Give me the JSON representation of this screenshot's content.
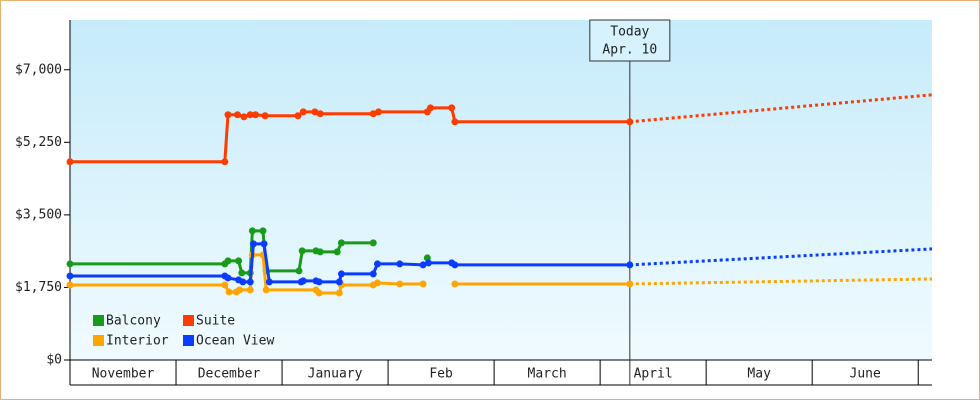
{
  "chart_data": {
    "type": "line",
    "categories": [
      "November",
      "December",
      "January",
      "Feb",
      "March",
      "April",
      "May",
      "June"
    ],
    "xlim": [
      0,
      8.13
    ],
    "xticks": [
      0,
      1,
      2,
      3,
      4,
      5,
      6,
      7,
      8
    ],
    "ylim": [
      0,
      8200
    ],
    "yticks": [
      {
        "value": 0,
        "label": "$0"
      },
      {
        "value": 1750,
        "label": "$1,750"
      },
      {
        "value": 3500,
        "label": "$3,500"
      },
      {
        "value": 5250,
        "label": "$5,250"
      },
      {
        "value": 7000,
        "label": "$7,000"
      }
    ],
    "annotation": {
      "x": 5.28,
      "lines": [
        "Today",
        "Apr. 10"
      ]
    },
    "legend": "lower left",
    "series": [
      {
        "name": "Balcony",
        "color": "#1a9a1a",
        "x": [
          0,
          1.46,
          1.49,
          1.59,
          1.62,
          1.7,
          1.72,
          1.82,
          1.85,
          2.16,
          2.19,
          2.32,
          2.36,
          2.52,
          2.56,
          2.86,
          null,
          3.37
        ],
        "values": [
          2317,
          2317,
          2390,
          2390,
          2100,
          2100,
          3114,
          3114,
          2148,
          2148,
          2631,
          2631,
          2607,
          2607,
          2824,
          2824,
          null,
          2462
        ]
      },
      {
        "name": "Suite",
        "color": "#ff3c00",
        "x": [
          0,
          1.46,
          1.49,
          1.58,
          1.64,
          1.7,
          1.75,
          1.84,
          2.15,
          2.2,
          2.31,
          2.36,
          2.86,
          2.91,
          3.37,
          3.4,
          3.6,
          3.63,
          5.28
        ],
        "values": [
          4780,
          4780,
          5915,
          5915,
          5865,
          5915,
          5915,
          5890,
          5890,
          5985,
          5985,
          5940,
          5940,
          5985,
          5985,
          6080,
          6080,
          5745,
          5745
        ],
        "forecast_x": [
          5.28,
          8.13
        ],
        "forecast_values": [
          5745,
          6396
        ]
      },
      {
        "name": "Interior",
        "color": "#ffa500",
        "x": [
          0,
          1.46,
          1.5,
          1.57,
          1.6,
          1.7,
          1.72,
          1.82,
          1.85,
          2.32,
          2.35,
          2.54,
          2.56,
          2.86,
          2.9,
          3.11,
          3.33,
          null,
          3.63,
          5.28
        ],
        "values": [
          1810,
          1810,
          1641,
          1641,
          1690,
          1690,
          2534,
          2534,
          1690,
          1690,
          1617,
          1617,
          1810,
          1810,
          1859,
          1834,
          1834,
          null,
          1834,
          1834
        ],
        "forecast_x": [
          5.28,
          8.13
        ],
        "forecast_values": [
          1834,
          1955
        ]
      },
      {
        "name": "Ocean View",
        "color": "#0a3cff",
        "x": [
          0,
          1.46,
          1.49,
          1.59,
          1.63,
          1.7,
          1.73,
          1.83,
          1.88,
          2.18,
          2.2,
          2.32,
          2.35,
          2.54,
          2.56,
          2.86,
          2.9,
          3.11,
          3.33,
          3.38,
          3.6,
          3.63,
          5.28
        ],
        "values": [
          2027,
          2027,
          1979,
          1931,
          1883,
          1883,
          2800,
          2800,
          1883,
          1883,
          1907,
          1907,
          1883,
          1883,
          2076,
          2076,
          2317,
          2317,
          2293,
          2341,
          2341,
          2293,
          2293
        ],
        "forecast_x": [
          5.28,
          8.13
        ],
        "forecast_values": [
          2293,
          2679
        ]
      }
    ]
  }
}
